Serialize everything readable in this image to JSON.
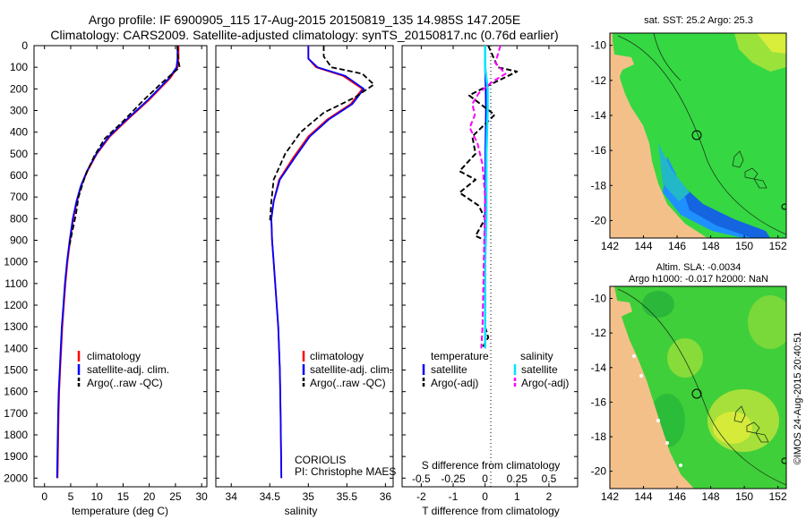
{
  "header": {
    "line1": "Argo profile: IF 6900905_115 17-Aug-2015 20150819_135 14.985S 147.205E",
    "line2": "Climatology: CARS2009. Satellite-adjusted climatology: synTS_20150817.nc (0.76d earlier)"
  },
  "colors": {
    "climatology": "#ff0000",
    "satellite": "#0000ff",
    "argo": "#000000",
    "s_satellite": "#00e5ff",
    "s_argo": "#ff00ff",
    "land": "#f4c08a",
    "ocean_shallow": "#33dd33",
    "ocean_deep": "#1e90ff"
  },
  "depth_axis": {
    "ticks": [
      "0",
      "100",
      "200",
      "300",
      "400",
      "500",
      "600",
      "700",
      "800",
      "900",
      "1000",
      "1100",
      "1200",
      "1300",
      "1400",
      "1500",
      "1600",
      "1700",
      "1800",
      "1900",
      "2000"
    ]
  },
  "legend_profiles": {
    "climatology": "climatology",
    "satellite": "satellite-adj. clim.",
    "argo": "Argo(..raw -QC)"
  },
  "legend_diff": {
    "temperature": "temperature",
    "salinity": "salinity",
    "t_satellite": "satellite",
    "t_argo": "Argo(-adj)",
    "s_satellite": "satellite",
    "s_argo": "Argo(-adj)"
  },
  "coriolis": {
    "line1": "CORIOLIS",
    "line2": "PI: Christophe MAES"
  },
  "map_top": {
    "title": "sat. SST: 25.2 Argo: 25.3"
  },
  "map_bottom": {
    "title1": "Altim. SLA: -0.0034",
    "title2": "Argo h1000: -0.017 h2000: NaN"
  },
  "map_axes": {
    "lon_ticks": [
      "142",
      "144",
      "146",
      "148",
      "150",
      "152"
    ],
    "lat_ticks": [
      "-10",
      "-12",
      "-14",
      "-16",
      "-18",
      "-20"
    ]
  },
  "side_label": "©IMOS 24-Aug-2015 20:40:51",
  "chart_data": [
    {
      "type": "line",
      "xlabel": "temperature (deg C)",
      "xlim": [
        -2,
        31
      ],
      "ylim": [
        2040,
        0
      ],
      "xticks": [
        "0",
        "5",
        "10",
        "15",
        "20",
        "25",
        "30"
      ],
      "series": [
        {
          "name": "climatology",
          "x": [
            25.6,
            25.6,
            25.4,
            24.0,
            20.0,
            15.5,
            12.5,
            10.0,
            8.2,
            7.0,
            6.2,
            5.5,
            4.9,
            4.4,
            4.0,
            3.7,
            3.4,
            3.2,
            3.0,
            2.8,
            2.7,
            2.6,
            2.5
          ],
          "y": [
            0,
            60,
            100,
            150,
            250,
            350,
            420,
            500,
            580,
            650,
            720,
            800,
            900,
            1000,
            1100,
            1200,
            1300,
            1400,
            1500,
            1600,
            1700,
            1850,
            2000
          ]
        },
        {
          "name": "satellite-adj. clim.",
          "x": [
            25.4,
            25.4,
            25.2,
            23.8,
            19.8,
            15.3,
            12.3,
            9.9,
            8.1,
            6.9,
            6.1,
            5.4,
            4.8,
            4.3,
            3.9,
            3.6,
            3.3,
            3.1,
            2.9,
            2.7,
            2.6,
            2.5,
            2.4
          ],
          "y": [
            0,
            60,
            100,
            150,
            250,
            350,
            420,
            500,
            580,
            650,
            720,
            800,
            900,
            1000,
            1100,
            1200,
            1300,
            1400,
            1500,
            1600,
            1700,
            1850,
            2000
          ]
        },
        {
          "name": "Argo(..raw -QC)",
          "x": [
            25.4,
            25.5,
            25.8,
            22.5,
            19.0,
            15.0,
            11.5,
            9.5,
            7.8,
            6.5,
            6.0,
            5.3,
            4.8
          ],
          "y": [
            0,
            60,
            100,
            170,
            250,
            350,
            430,
            510,
            600,
            700,
            780,
            860,
            920
          ]
        }
      ]
    },
    {
      "type": "line",
      "xlabel": "salinity",
      "xlim": [
        33.8,
        36.1
      ],
      "ylim": [
        2040,
        0
      ],
      "xticks": [
        "34",
        "34.5",
        "35",
        "35.5",
        "36"
      ],
      "series": [
        {
          "name": "climatology",
          "x": [
            35.0,
            35.0,
            35.1,
            35.45,
            35.7,
            35.55,
            35.25,
            35.0,
            34.8,
            34.62,
            34.55,
            34.52,
            34.53,
            34.55,
            34.57,
            34.59,
            34.61,
            34.62,
            34.63,
            34.64,
            34.65
          ],
          "y": [
            0,
            60,
            100,
            140,
            200,
            270,
            340,
            420,
            520,
            620,
            720,
            800,
            900,
            1000,
            1100,
            1200,
            1300,
            1400,
            1500,
            1700,
            2000
          ]
        },
        {
          "name": "satellite-adj. clim.",
          "x": [
            35.0,
            35.0,
            35.12,
            35.48,
            35.72,
            35.57,
            35.27,
            35.02,
            34.82,
            34.63,
            34.55,
            34.52,
            34.53,
            34.55,
            34.57,
            34.59,
            34.61,
            34.62,
            34.63,
            34.64,
            34.65
          ],
          "y": [
            0,
            60,
            100,
            140,
            200,
            270,
            340,
            420,
            520,
            620,
            720,
            800,
            900,
            1000,
            1100,
            1200,
            1300,
            1400,
            1500,
            1700,
            2000
          ]
        },
        {
          "name": "Argo(..raw -QC)",
          "x": [
            35.2,
            35.2,
            35.3,
            35.7,
            35.85,
            35.6,
            35.2,
            34.9,
            34.7,
            34.55,
            34.52,
            34.5
          ],
          "y": [
            0,
            50,
            100,
            130,
            180,
            240,
            310,
            400,
            500,
            620,
            720,
            820
          ]
        }
      ]
    },
    {
      "type": "line",
      "xlabel": "T difference from climatology",
      "xlabel2": "S difference from climatology",
      "xlim": [
        -2.6,
        2.9
      ],
      "ylim": [
        2040,
        0
      ],
      "xticks": [
        "-2",
        "-1",
        "0",
        "1",
        "2"
      ],
      "xticks_top": [
        "-0.5",
        "-0.25",
        "0",
        "0.25",
        "0.5"
      ],
      "series": [
        {
          "name": "T satellite",
          "x": [
            0,
            0,
            0.02,
            0.03,
            0.02,
            0.01,
            0.01,
            0.0,
            0.0,
            0.0,
            0.0,
            0.0
          ],
          "y": [
            0,
            100,
            200,
            300,
            400,
            500,
            600,
            800,
            1000,
            1200,
            1300,
            1400
          ]
        },
        {
          "name": "T Argo(-adj)",
          "x": [
            0.1,
            0.4,
            1.0,
            0.3,
            -0.5,
            0.3,
            -0.4,
            -0.3,
            -0.8,
            -0.3,
            -0.8,
            -0.2,
            0.0,
            -0.3,
            0.0,
            0.0,
            0.1,
            -0.1
          ],
          "y": [
            0,
            100,
            120,
            170,
            230,
            320,
            420,
            500,
            580,
            620,
            680,
            740,
            800,
            880,
            900,
            1300,
            1350,
            1400
          ]
        },
        {
          "name": "S satellite",
          "x": [
            0.0,
            0.0,
            0.02,
            0.02,
            0.01,
            0.01,
            0.0,
            0.0,
            0.0
          ],
          "y": [
            0,
            100,
            200,
            300,
            500,
            800,
            1000,
            1300,
            1400
          ]
        },
        {
          "name": "S Argo(-adj)",
          "x": [
            0.12,
            0.08,
            0.16,
            0.05,
            -0.05,
            -0.1,
            -0.08,
            -0.12,
            -0.06,
            -0.02,
            0.0,
            -0.02,
            -0.03
          ],
          "y": [
            0,
            80,
            130,
            170,
            220,
            270,
            320,
            380,
            450,
            550,
            700,
            1300,
            1400
          ]
        }
      ]
    }
  ]
}
